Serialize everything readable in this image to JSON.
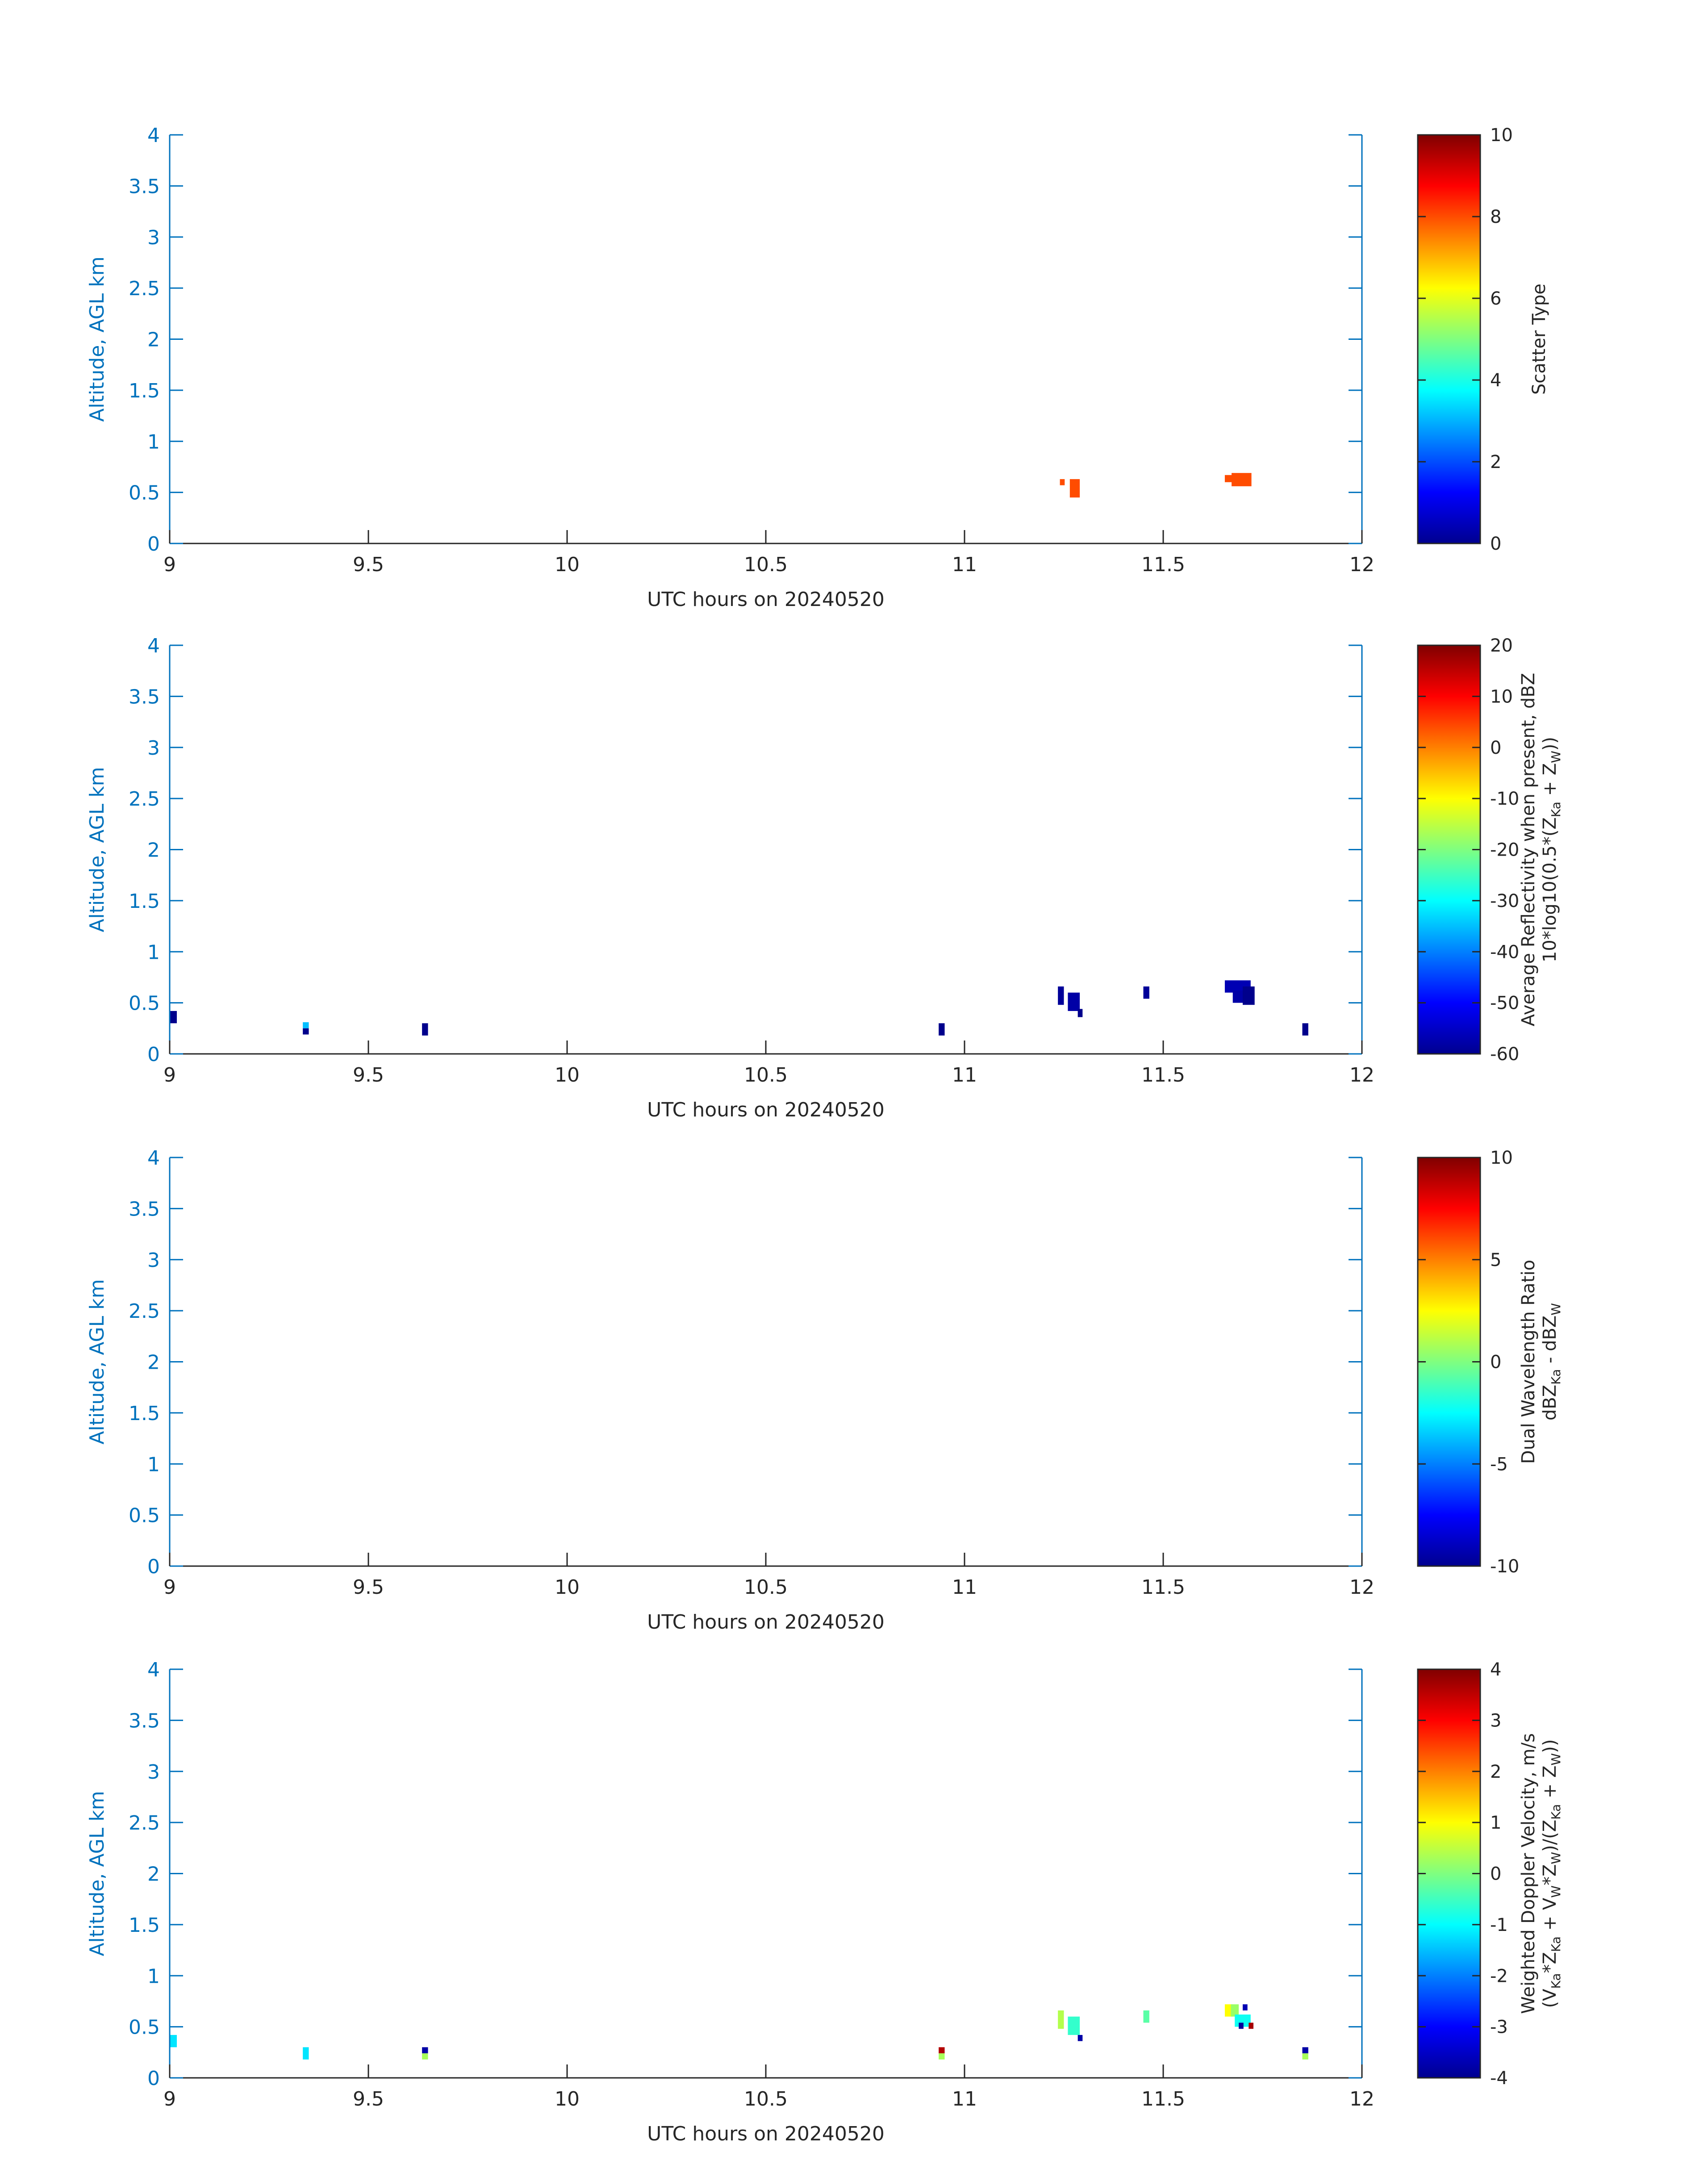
{
  "chart_data": [
    {
      "type": "heatmap",
      "xlabel": "UTC hours on 20240520",
      "ylabel": "Altitude, AGL km",
      "xlim": [
        9,
        12
      ],
      "ylim": [
        0,
        4
      ],
      "x_ticks": [
        "9",
        "9.5",
        "10",
        "10.5",
        "11",
        "11.5",
        "12"
      ],
      "y_ticks": [
        "0",
        "0.5",
        "1",
        "1.5",
        "2",
        "2.5",
        "3",
        "3.5",
        "4"
      ],
      "colorbar": {
        "label_lines": [
          [
            {
              "t": "Scatter Type"
            }
          ]
        ],
        "range": [
          0,
          10
        ],
        "ticks": [
          "0",
          "2",
          "4",
          "6",
          "8",
          "10"
        ],
        "colormap": "jet"
      },
      "cells": [
        {
          "x": 11.24,
          "y": 0.57,
          "w": 0.012,
          "h": 0.06,
          "v": 8
        },
        {
          "x": 11.265,
          "y": 0.45,
          "w": 0.025,
          "h": 0.18,
          "v": 8
        },
        {
          "x": 11.655,
          "y": 0.6,
          "w": 0.02,
          "h": 0.07,
          "v": 8
        },
        {
          "x": 11.672,
          "y": 0.56,
          "w": 0.05,
          "h": 0.13,
          "v": 8
        }
      ]
    },
    {
      "type": "heatmap",
      "xlabel": "UTC hours on 20240520",
      "ylabel": "Altitude, AGL km",
      "xlim": [
        9,
        12
      ],
      "ylim": [
        0,
        4
      ],
      "x_ticks": [
        "9",
        "9.5",
        "10",
        "10.5",
        "11",
        "11.5",
        "12"
      ],
      "y_ticks": [
        "0",
        "0.5",
        "1",
        "1.5",
        "2",
        "2.5",
        "3",
        "3.5",
        "4"
      ],
      "colorbar": {
        "label_lines": [
          [
            {
              "t": "Average Reflectivity when present, dBZ"
            }
          ],
          [
            {
              "t": "10*log10(0.5*(Z"
            },
            {
              "t": "Ka",
              "sub": true
            },
            {
              "t": " + Z"
            },
            {
              "t": "W",
              "sub": true
            },
            {
              "t": "))"
            }
          ]
        ],
        "range": [
          -60,
          20
        ],
        "ticks": [
          "-60",
          "-50",
          "-40",
          "-30",
          "-20",
          "-10",
          "0",
          "10",
          "20"
        ],
        "colormap": "jet"
      },
      "cells": [
        {
          "x": 9.0,
          "y": 0.3,
          "w": 0.018,
          "h": 0.12,
          "v": -59
        },
        {
          "x": 9.335,
          "y": 0.25,
          "w": 0.015,
          "h": 0.06,
          "v": -35
        },
        {
          "x": 9.335,
          "y": 0.19,
          "w": 0.015,
          "h": 0.06,
          "v": -59
        },
        {
          "x": 9.635,
          "y": 0.18,
          "w": 0.015,
          "h": 0.12,
          "v": -59
        },
        {
          "x": 10.935,
          "y": 0.18,
          "w": 0.015,
          "h": 0.12,
          "v": -59
        },
        {
          "x": 11.235,
          "y": 0.48,
          "w": 0.015,
          "h": 0.18,
          "v": -58
        },
        {
          "x": 11.26,
          "y": 0.42,
          "w": 0.03,
          "h": 0.18,
          "v": -57
        },
        {
          "x": 11.285,
          "y": 0.36,
          "w": 0.012,
          "h": 0.08,
          "v": -59
        },
        {
          "x": 11.45,
          "y": 0.54,
          "w": 0.015,
          "h": 0.12,
          "v": -58
        },
        {
          "x": 11.655,
          "y": 0.6,
          "w": 0.065,
          "h": 0.12,
          "v": -56
        },
        {
          "x": 11.675,
          "y": 0.5,
          "w": 0.05,
          "h": 0.12,
          "v": -57
        },
        {
          "x": 11.7,
          "y": 0.48,
          "w": 0.03,
          "h": 0.18,
          "v": -59
        },
        {
          "x": 11.85,
          "y": 0.18,
          "w": 0.015,
          "h": 0.12,
          "v": -59
        }
      ]
    },
    {
      "type": "heatmap",
      "xlabel": "UTC hours on 20240520",
      "ylabel": "Altitude, AGL km",
      "xlim": [
        9,
        12
      ],
      "ylim": [
        0,
        4
      ],
      "x_ticks": [
        "9",
        "9.5",
        "10",
        "10.5",
        "11",
        "11.5",
        "12"
      ],
      "y_ticks": [
        "0",
        "0.5",
        "1",
        "1.5",
        "2",
        "2.5",
        "3",
        "3.5",
        "4"
      ],
      "colorbar": {
        "label_lines": [
          [
            {
              "t": "Dual Wavelength Ratio"
            }
          ],
          [
            {
              "t": "dBZ"
            },
            {
              "t": "Ka",
              "sub": true
            },
            {
              "t": " - dBZ"
            },
            {
              "t": "W",
              "sub": true
            }
          ]
        ],
        "range": [
          -10,
          10
        ],
        "ticks": [
          "-10",
          "-5",
          "0",
          "5",
          "10"
        ],
        "colormap": "jet"
      },
      "cells": []
    },
    {
      "type": "heatmap",
      "xlabel": "UTC hours on 20240520",
      "ylabel": "Altitude, AGL km",
      "xlim": [
        9,
        12
      ],
      "ylim": [
        0,
        4
      ],
      "x_ticks": [
        "9",
        "9.5",
        "10",
        "10.5",
        "11",
        "11.5",
        "12"
      ],
      "y_ticks": [
        "0",
        "0.5",
        "1",
        "1.5",
        "2",
        "2.5",
        "3",
        "3.5",
        "4"
      ],
      "colorbar": {
        "label_lines": [
          [
            {
              "t": "Weighted Doppler Velocity, m/s"
            }
          ],
          [
            {
              "t": "(V"
            },
            {
              "t": "Ka",
              "sub": true
            },
            {
              "t": "*Z"
            },
            {
              "t": "Ka",
              "sub": true
            },
            {
              "t": " + V"
            },
            {
              "t": "W",
              "sub": true
            },
            {
              "t": "*Z"
            },
            {
              "t": "W",
              "sub": true
            },
            {
              "t": ")/(Z"
            },
            {
              "t": "Ka",
              "sub": true
            },
            {
              "t": " + Z"
            },
            {
              "t": "W",
              "sub": true
            },
            {
              "t": "))"
            }
          ]
        ],
        "range": [
          -4,
          4
        ],
        "ticks": [
          "-4",
          "-3",
          "-2",
          "-1",
          "0",
          "1",
          "2",
          "3",
          "4"
        ],
        "colormap": "jet"
      },
      "cells": [
        {
          "x": 9.0,
          "y": 0.3,
          "w": 0.018,
          "h": 0.12,
          "v": -1.2
        },
        {
          "x": 9.335,
          "y": 0.18,
          "w": 0.015,
          "h": 0.12,
          "v": -1.2
        },
        {
          "x": 9.635,
          "y": 0.24,
          "w": 0.015,
          "h": 0.06,
          "v": -3.7
        },
        {
          "x": 9.635,
          "y": 0.18,
          "w": 0.015,
          "h": 0.06,
          "v": 0.3
        },
        {
          "x": 10.935,
          "y": 0.24,
          "w": 0.015,
          "h": 0.06,
          "v": 3.6
        },
        {
          "x": 10.935,
          "y": 0.18,
          "w": 0.015,
          "h": 0.06,
          "v": 0.3
        },
        {
          "x": 11.235,
          "y": 0.48,
          "w": 0.015,
          "h": 0.18,
          "v": 0.4
        },
        {
          "x": 11.26,
          "y": 0.42,
          "w": 0.03,
          "h": 0.18,
          "v": -0.6
        },
        {
          "x": 11.285,
          "y": 0.36,
          "w": 0.012,
          "h": 0.06,
          "v": -3.7
        },
        {
          "x": 11.45,
          "y": 0.54,
          "w": 0.015,
          "h": 0.12,
          "v": -0.3
        },
        {
          "x": 11.655,
          "y": 0.6,
          "w": 0.02,
          "h": 0.12,
          "v": 1.0
        },
        {
          "x": 11.67,
          "y": 0.6,
          "w": 0.02,
          "h": 0.12,
          "v": 0.2
        },
        {
          "x": 11.68,
          "y": 0.5,
          "w": 0.04,
          "h": 0.12,
          "v": -0.9
        },
        {
          "x": 11.7,
          "y": 0.66,
          "w": 0.012,
          "h": 0.06,
          "v": -3.6
        },
        {
          "x": 11.69,
          "y": 0.48,
          "w": 0.012,
          "h": 0.06,
          "v": -3.8
        },
        {
          "x": 11.715,
          "y": 0.48,
          "w": 0.012,
          "h": 0.06,
          "v": 3.7
        },
        {
          "x": 11.85,
          "y": 0.24,
          "w": 0.015,
          "h": 0.06,
          "v": -3.7
        },
        {
          "x": 11.85,
          "y": 0.18,
          "w": 0.015,
          "h": 0.06,
          "v": 0.3
        }
      ]
    }
  ]
}
